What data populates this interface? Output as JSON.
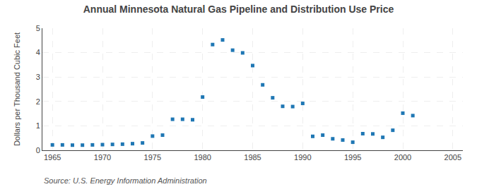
{
  "chart_data": {
    "type": "scatter",
    "title": "Annual Minnesota Natural Gas Pipeline and Distribution Use Price",
    "ylabel": "Dollars per Thousand Cubic Feet",
    "annotations": [
      "Source: U.S. Energy Information Administration"
    ],
    "x": [
      1965,
      1966,
      1967,
      1968,
      1969,
      1970,
      1971,
      1972,
      1973,
      1974,
      1975,
      1976,
      1977,
      1978,
      1979,
      1980,
      1981,
      1982,
      1983,
      1984,
      1985,
      1986,
      1987,
      1988,
      1989,
      1990,
      1991,
      1992,
      1993,
      1994,
      1995,
      1996,
      1997,
      1998,
      1999,
      2000,
      2001
    ],
    "values": [
      0.22,
      0.22,
      0.21,
      0.21,
      0.22,
      0.23,
      0.24,
      0.25,
      0.27,
      0.3,
      0.58,
      0.62,
      1.27,
      1.27,
      1.25,
      2.18,
      4.33,
      4.52,
      4.1,
      3.99,
      3.47,
      2.68,
      2.15,
      1.8,
      1.79,
      1.92,
      0.57,
      0.62,
      0.47,
      0.42,
      0.33,
      0.68,
      0.67,
      0.53,
      0.82,
      1.52,
      1.42
    ],
    "marker": "square",
    "xlim": [
      1964,
      2006
    ],
    "xticks": [
      1965,
      1970,
      1975,
      1980,
      1985,
      1990,
      1995,
      2000,
      2005
    ],
    "ylim": [
      0,
      5
    ],
    "yticks": [
      0,
      1,
      2,
      3,
      4,
      5
    ],
    "grid": true
  }
}
